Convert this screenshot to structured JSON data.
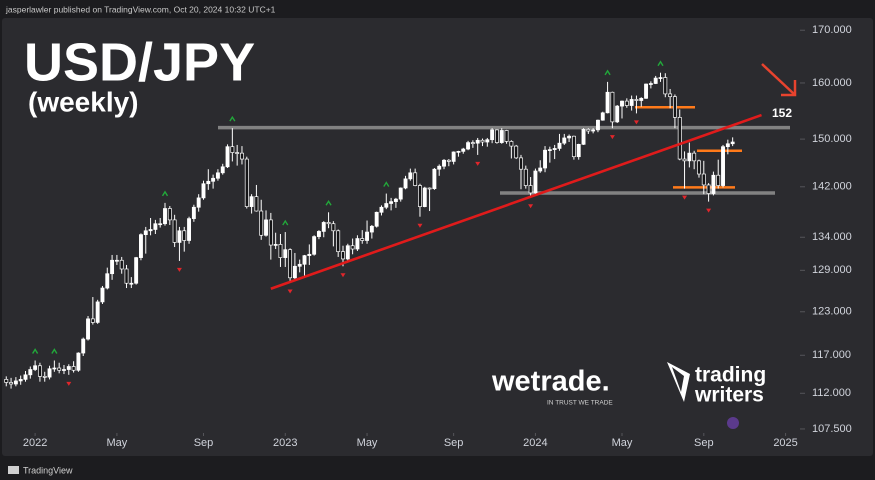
{
  "header": "jasperlawler published on TradingView.com, Oct 20, 2024 10:32 UTC+1",
  "footer": "TradingView",
  "branding": {
    "wetrade": "wetrade.",
    "tagline": "IN TRUST WE TRADE",
    "tw_line1": "trading",
    "tw_line2": "writers"
  },
  "chart_data": {
    "type": "candlestick",
    "title": "USD/JPY",
    "subtitle": "(weekly)",
    "log_scale": true,
    "grid": false,
    "up_color": "#ffffff",
    "down_color": "#141416",
    "ylim": [
      107,
      175
    ],
    "yticks": [
      {
        "value": 170,
        "label": "170.000"
      },
      {
        "value": 160,
        "label": "160.000"
      },
      {
        "value": 150,
        "label": "150.000"
      },
      {
        "value": 142,
        "label": "142.000"
      },
      {
        "value": 134,
        "label": "134.000"
      },
      {
        "value": 129,
        "label": "129.000"
      },
      {
        "value": 123,
        "label": "123.000"
      },
      {
        "value": 117,
        "label": "117.000"
      },
      {
        "value": 112,
        "label": "112.000"
      },
      {
        "value": 107.5,
        "label": "107.500"
      }
    ],
    "xlim": [
      -1.3,
      165
    ],
    "xticks": [
      {
        "value": 6,
        "label": "2022"
      },
      {
        "value": 23,
        "label": "May"
      },
      {
        "value": 41,
        "label": "Sep"
      },
      {
        "value": 58,
        "label": "2023"
      },
      {
        "value": 75,
        "label": "May"
      },
      {
        "value": 93,
        "label": "Sep"
      },
      {
        "value": 110,
        "label": "2024"
      },
      {
        "value": 128,
        "label": "May"
      },
      {
        "value": 145,
        "label": "Sep"
      },
      {
        "value": 162,
        "label": "2025"
      }
    ],
    "levels": [
      {
        "value": 152,
        "label": "152",
        "color": "#8c8c8c"
      },
      {
        "value": 141,
        "color": "#8c8c8c"
      }
    ],
    "zones": {
      "values": [
        155.6,
        148,
        141.9
      ],
      "color": "#ff7a1a"
    },
    "trendline": {
      "x": [
        55,
        157
      ],
      "values": [
        126.3,
        154.2
      ],
      "color": "#e01b1b"
    },
    "fractal_colors": {
      "high": "#22a83a",
      "low": "#e0262b"
    },
    "ohlc": [
      [
        113.8,
        114.2,
        112.9,
        113.4
      ],
      [
        113.4,
        114.0,
        112.6,
        113.2
      ],
      [
        113.2,
        114.1,
        112.9,
        113.6
      ],
      [
        113.6,
        114.3,
        113.1,
        113.8
      ],
      [
        113.8,
        114.9,
        113.5,
        114.4
      ],
      [
        114.4,
        115.5,
        113.9,
        115.1
      ],
      [
        115.1,
        116.3,
        114.9,
        115.6
      ],
      [
        115.6,
        116.0,
        113.5,
        114.2
      ],
      [
        114.2,
        114.8,
        113.5,
        114.1
      ],
      [
        114.1,
        115.6,
        113.8,
        115.2
      ],
      [
        115.2,
        116.3,
        114.8,
        115.3
      ],
      [
        115.3,
        116.0,
        114.6,
        115.0
      ],
      [
        115.0,
        115.7,
        114.5,
        115.1
      ],
      [
        115.1,
        115.8,
        114.4,
        115.5
      ],
      [
        115.5,
        116.2,
        114.7,
        115.0
      ],
      [
        115.0,
        117.4,
        114.8,
        117.3
      ],
      [
        117.3,
        119.4,
        116.9,
        119.2
      ],
      [
        119.2,
        122.4,
        119.0,
        122.0
      ],
      [
        122.0,
        125.1,
        121.2,
        121.5
      ],
      [
        121.5,
        124.7,
        121.3,
        124.4
      ],
      [
        124.4,
        126.7,
        124.1,
        126.4
      ],
      [
        126.4,
        129.4,
        126.2,
        128.5
      ],
      [
        128.5,
        131.3,
        127.6,
        130.5
      ],
      [
        130.5,
        131.3,
        129.8,
        130.5
      ],
      [
        130.5,
        131.0,
        128.5,
        129.2
      ],
      [
        129.2,
        129.8,
        126.4,
        127.1
      ],
      [
        127.1,
        128.0,
        126.4,
        127.1
      ],
      [
        127.1,
        131.0,
        126.9,
        130.9
      ],
      [
        130.9,
        134.6,
        130.5,
        134.4
      ],
      [
        134.4,
        135.6,
        131.5,
        135.0
      ],
      [
        135.0,
        137.0,
        134.3,
        135.2
      ],
      [
        135.2,
        136.7,
        134.5,
        136.1
      ],
      [
        136.1,
        137.0,
        135.5,
        136.1
      ],
      [
        136.1,
        139.4,
        135.8,
        138.5
      ],
      [
        138.5,
        138.9,
        135.9,
        136.7
      ],
      [
        136.7,
        137.5,
        132.5,
        133.2
      ],
      [
        133.2,
        135.6,
        130.4,
        135.0
      ],
      [
        135.0,
        135.6,
        131.8,
        133.5
      ],
      [
        133.5,
        137.2,
        133.0,
        136.9
      ],
      [
        136.9,
        139.1,
        136.4,
        138.7
      ],
      [
        138.7,
        140.8,
        138.0,
        140.2
      ],
      [
        140.2,
        143.0,
        139.9,
        142.5
      ],
      [
        142.5,
        144.9,
        141.5,
        142.9
      ],
      [
        142.9,
        144.0,
        141.7,
        143.4
      ],
      [
        143.4,
        144.9,
        143.0,
        144.3
      ],
      [
        144.3,
        145.8,
        144.0,
        145.3
      ],
      [
        145.3,
        149.1,
        145.1,
        148.7
      ],
      [
        148.7,
        151.9,
        146.2,
        147.7
      ],
      [
        147.7,
        149.0,
        145.5,
        147.6
      ],
      [
        147.6,
        148.8,
        145.7,
        146.6
      ],
      [
        146.6,
        147.0,
        138.5,
        138.8
      ],
      [
        138.8,
        140.8,
        137.7,
        140.4
      ],
      [
        140.4,
        142.3,
        138.0,
        138.1
      ],
      [
        138.1,
        139.9,
        133.6,
        134.3
      ],
      [
        134.3,
        138.2,
        134.1,
        136.7
      ],
      [
        136.7,
        137.8,
        130.6,
        132.8
      ],
      [
        132.8,
        134.7,
        132.2,
        132.9
      ],
      [
        132.9,
        134.5,
        129.5,
        130.9
      ],
      [
        130.9,
        134.8,
        129.5,
        132.1
      ],
      [
        132.1,
        132.3,
        127.2,
        127.9
      ],
      [
        127.9,
        131.6,
        127.5,
        129.6
      ],
      [
        129.6,
        130.6,
        128.7,
        129.9
      ],
      [
        129.9,
        131.3,
        128.1,
        131.2
      ],
      [
        131.2,
        132.9,
        129.8,
        131.4
      ],
      [
        131.4,
        134.3,
        131.2,
        134.1
      ],
      [
        134.1,
        135.1,
        133.7,
        134.9
      ],
      [
        134.9,
        136.5,
        134.0,
        136.3
      ],
      [
        136.3,
        137.9,
        135.4,
        136.1
      ],
      [
        136.1,
        136.5,
        132.6,
        135.0
      ],
      [
        135.0,
        135.2,
        131.0,
        131.8
      ],
      [
        131.8,
        132.7,
        129.6,
        130.7
      ],
      [
        130.7,
        133.0,
        130.4,
        132.7
      ],
      [
        132.7,
        133.8,
        131.4,
        132.2
      ],
      [
        132.2,
        134.3,
        131.9,
        133.8
      ],
      [
        133.8,
        135.1,
        133.0,
        133.5
      ],
      [
        133.5,
        136.6,
        133.0,
        134.8
      ],
      [
        134.8,
        135.9,
        133.8,
        135.7
      ],
      [
        135.7,
        138.0,
        135.5,
        137.9
      ],
      [
        137.9,
        139.0,
        137.4,
        138.7
      ],
      [
        138.7,
        140.9,
        138.4,
        139.3
      ],
      [
        139.3,
        140.2,
        138.2,
        139.6
      ],
      [
        139.6,
        140.2,
        138.6,
        140.0
      ],
      [
        140.0,
        141.9,
        139.6,
        141.8
      ],
      [
        141.8,
        143.8,
        141.6,
        143.3
      ],
      [
        143.3,
        145.0,
        143.0,
        144.3
      ],
      [
        144.3,
        145.0,
        142.1,
        142.2
      ],
      [
        142.2,
        142.5,
        137.2,
        138.8
      ],
      [
        138.8,
        142.0,
        138.7,
        141.8
      ],
      [
        141.8,
        141.9,
        138.1,
        141.7
      ],
      [
        141.7,
        145.1,
        141.5,
        144.9
      ],
      [
        144.9,
        145.7,
        143.8,
        145.4
      ],
      [
        145.4,
        146.6,
        144.9,
        146.4
      ],
      [
        146.4,
        146.6,
        145.4,
        146.2
      ],
      [
        146.2,
        147.9,
        145.7,
        147.8
      ],
      [
        147.8,
        148.0,
        147.0,
        147.9
      ],
      [
        147.9,
        148.5,
        147.5,
        148.3
      ],
      [
        148.3,
        149.7,
        148.1,
        149.4
      ],
      [
        149.4,
        149.8,
        148.5,
        149.3
      ],
      [
        149.3,
        150.2,
        147.3,
        149.8
      ],
      [
        149.8,
        150.1,
        148.8,
        149.5
      ],
      [
        149.5,
        150.2,
        148.7,
        149.9
      ],
      [
        149.9,
        151.9,
        149.3,
        151.6
      ],
      [
        151.6,
        151.7,
        149.2,
        149.4
      ],
      [
        149.4,
        151.9,
        149.2,
        151.5
      ],
      [
        151.5,
        151.6,
        149.2,
        149.6
      ],
      [
        149.6,
        149.8,
        146.7,
        148.8
      ],
      [
        148.8,
        149.0,
        146.6,
        146.8
      ],
      [
        146.8,
        147.3,
        141.6,
        144.9
      ],
      [
        144.9,
        145.5,
        141.7,
        142.2
      ],
      [
        142.2,
        143.6,
        140.3,
        141.0
      ],
      [
        141.0,
        145.0,
        140.8,
        144.6
      ],
      [
        144.6,
        146.4,
        144.3,
        145.1
      ],
      [
        145.1,
        148.8,
        144.4,
        148.1
      ],
      [
        148.1,
        148.7,
        146.0,
        148.2
      ],
      [
        148.2,
        149.0,
        146.6,
        148.4
      ],
      [
        148.4,
        150.9,
        148.0,
        149.3
      ],
      [
        149.3,
        150.9,
        149.0,
        150.2
      ],
      [
        150.2,
        150.8,
        149.5,
        150.5
      ],
      [
        150.5,
        150.6,
        146.5,
        147.0
      ],
      [
        147.0,
        149.2,
        146.5,
        149.1
      ],
      [
        149.1,
        151.9,
        149.0,
        151.7
      ],
      [
        151.7,
        151.9,
        150.9,
        151.4
      ],
      [
        151.4,
        151.9,
        151.0,
        151.6
      ],
      [
        151.6,
        153.4,
        151.2,
        153.3
      ],
      [
        153.3,
        154.8,
        153.2,
        154.6
      ],
      [
        154.6,
        160.2,
        154.5,
        158.3
      ],
      [
        158.3,
        158.4,
        151.9,
        153.0
      ],
      [
        153.0,
        156.0,
        152.8,
        155.8
      ],
      [
        155.8,
        156.8,
        153.6,
        156.7
      ],
      [
        156.7,
        157.2,
        155.5,
        155.9
      ],
      [
        155.9,
        157.7,
        155.0,
        157.0
      ],
      [
        157.0,
        157.7,
        154.5,
        156.8
      ],
      [
        156.8,
        157.4,
        155.7,
        157.2
      ],
      [
        157.2,
        159.9,
        157.1,
        159.8
      ],
      [
        159.8,
        160.3,
        159.0,
        159.9
      ],
      [
        159.9,
        161.3,
        159.8,
        160.9
      ],
      [
        160.9,
        161.9,
        160.2,
        161.0
      ],
      [
        161.0,
        161.8,
        157.4,
        158.0
      ],
      [
        158.0,
        158.9,
        155.4,
        157.5
      ],
      [
        157.5,
        157.9,
        151.9,
        153.8
      ],
      [
        153.8,
        155.2,
        146.4,
        146.6
      ],
      [
        146.6,
        147.9,
        141.7,
        146.3
      ],
      [
        146.3,
        149.4,
        145.2,
        147.6
      ],
      [
        147.6,
        148.0,
        144.9,
        146.3
      ],
      [
        146.3,
        146.5,
        143.5,
        144.1
      ],
      [
        144.1,
        146.3,
        140.8,
        142.3
      ],
      [
        142.3,
        142.6,
        139.6,
        140.9
      ],
      [
        140.9,
        144.5,
        140.6,
        143.9
      ],
      [
        143.9,
        146.5,
        141.7,
        142.2
      ],
      [
        142.2,
        149.0,
        141.9,
        148.7
      ],
      [
        148.7,
        149.9,
        147.4,
        149.2
      ],
      [
        149.2,
        150.3,
        148.8,
        149.5
      ]
    ]
  }
}
